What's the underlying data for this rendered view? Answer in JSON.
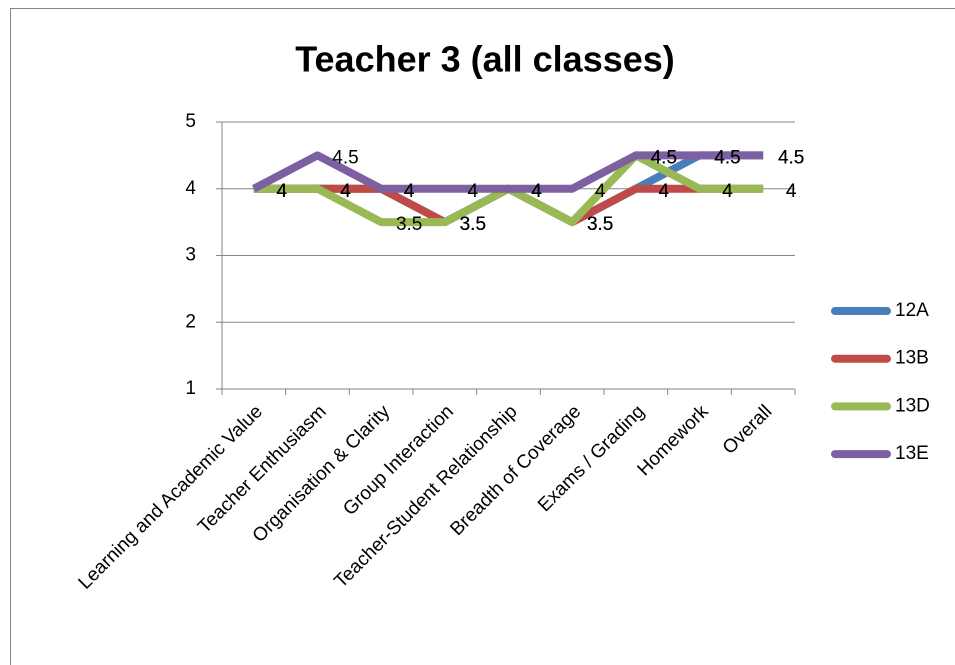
{
  "chart_data": {
    "type": "line",
    "title": "Teacher 3 (all classes)",
    "categories": [
      "Learning and Academic Value",
      "Teacher Enthusiasm",
      "Organisation & Clarity",
      "Group Interaction",
      "Teacher-Student Relationship",
      "Breadth of Coverage",
      "Exams / Grading",
      "Homework",
      "Overall"
    ],
    "series": [
      {
        "name": "12A",
        "color": "#4a7ebb",
        "values": [
          4,
          4,
          4,
          3.5,
          4,
          3.5,
          4,
          4.5,
          4.5
        ]
      },
      {
        "name": "13B",
        "color": "#be4b48",
        "values": [
          4,
          4,
          4,
          3.5,
          4,
          3.5,
          4,
          4,
          4
        ]
      },
      {
        "name": "13D",
        "color": "#98b954",
        "values": [
          4,
          4,
          3.5,
          3.5,
          4,
          3.5,
          4.5,
          4,
          4
        ]
      },
      {
        "name": "13E",
        "color": "#7d60a0",
        "values": [
          4,
          4.5,
          4,
          4,
          4,
          4,
          4.5,
          4.5,
          4.5
        ]
      }
    ],
    "ylim": [
      1,
      5
    ],
    "yticks": [
      1,
      2,
      3,
      4,
      5
    ],
    "grid": true,
    "legend": "right",
    "data_labels": true
  }
}
